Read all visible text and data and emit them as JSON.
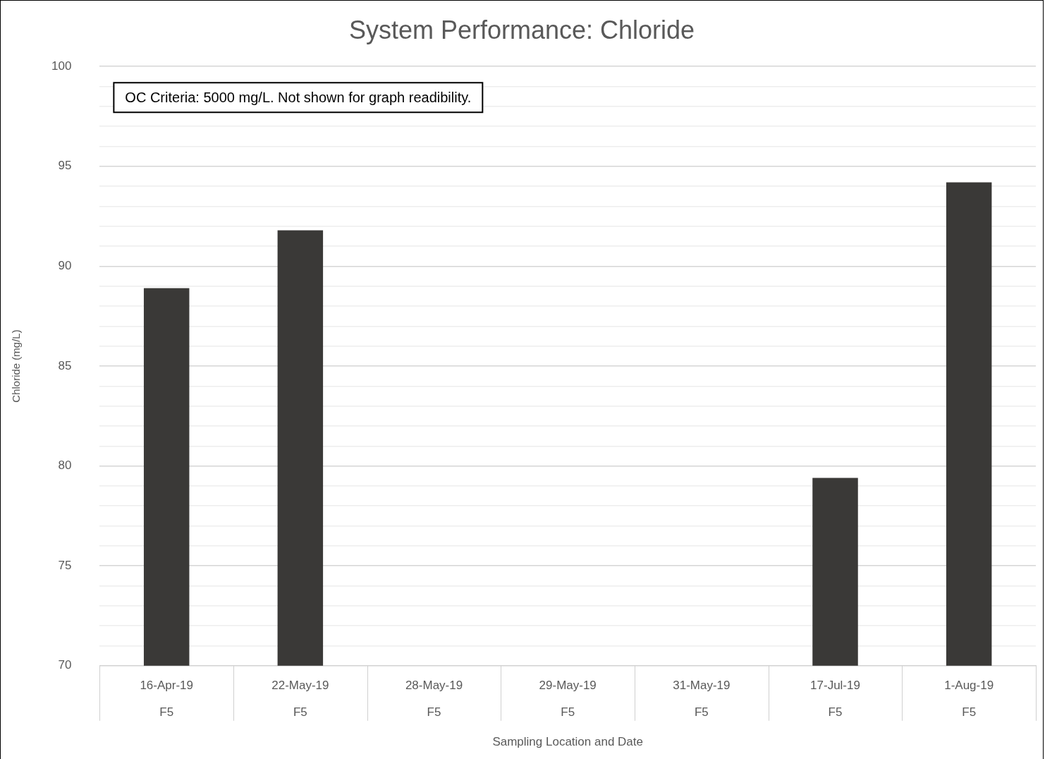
{
  "chart_data": {
    "type": "bar",
    "title": "System Performance: Chloride",
    "xlabel": "Sampling Location and Date",
    "ylabel": "Chloride (mg/L)",
    "categories": [
      "16-Apr-19\nF5",
      "22-May-19\nF5",
      "28-May-19\nF5",
      "29-May-19\nF5",
      "31-May-19\nF5",
      "17-Jul-19\nF5",
      "1-Aug-19\nF5"
    ],
    "values": [
      88.9,
      91.8,
      null,
      null,
      null,
      79.4,
      94.2
    ],
    "color": "#3a3937",
    "ylim": [
      70,
      100
    ],
    "yticks": [
      70,
      {
        "value": 71,
        "label": null
      },
      {
        "value": 72,
        "label": null
      },
      {
        "value": 73,
        "label": null
      },
      {
        "value": 74,
        "label": null
      },
      75,
      {
        "value": 76,
        "label": null
      },
      {
        "value": 77,
        "label": null
      },
      {
        "value": 78,
        "label": null
      },
      {
        "value": 79,
        "label": null
      },
      80,
      {
        "value": 81,
        "label": null
      },
      {
        "value": 82,
        "label": null
      },
      {
        "value": 83,
        "label": null
      },
      {
        "value": 84,
        "label": null
      },
      85,
      {
        "value": 86,
        "label": null
      },
      {
        "value": 87,
        "label": null
      },
      {
        "value": 88,
        "label": null
      },
      {
        "value": 89,
        "label": null
      },
      90,
      {
        "value": 91,
        "label": null
      },
      {
        "value": 92,
        "label": null
      },
      {
        "value": 93,
        "label": null
      },
      {
        "value": 94,
        "label": null
      },
      95,
      {
        "value": 96,
        "label": null
      },
      {
        "value": 97,
        "label": null
      },
      {
        "value": 98,
        "label": null
      },
      {
        "value": 99,
        "label": null
      },
      100
    ],
    "grid": "y",
    "legend": false,
    "annotations": [
      "OC Criteria: 5000 mg/L. Not shown for graph readibility."
    ]
  }
}
